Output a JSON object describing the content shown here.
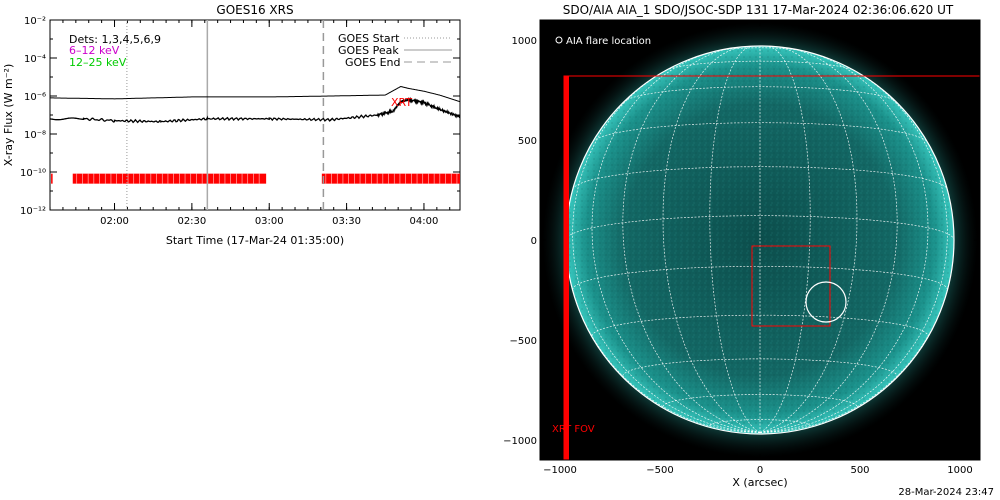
{
  "chart_data": [
    {
      "type": "line",
      "title": "GOES16 XRS",
      "xlabel": "Start Time (17-Mar-24 01:35:00)",
      "ylabel": "X-ray Flux (W m⁻²)",
      "yscale": "log",
      "ylim": [
        1e-12,
        0.01
      ],
      "xlim_hours": [
        1.583,
        4.233
      ],
      "x_ticks": [
        "02:00",
        "02:30",
        "03:00",
        "03:30",
        "04:00"
      ],
      "x_tick_hours": [
        2.0,
        2.5,
        3.0,
        3.5,
        4.0
      ],
      "y_ticks": [
        "10⁻²",
        "10⁻⁴",
        "10⁻⁶",
        "10⁻⁸",
        "10⁻¹⁰",
        "10⁻¹²"
      ],
      "y_tick_exps": [
        -2,
        -4,
        -6,
        -8,
        -10,
        -12
      ],
      "annotations": {
        "dets": "Dets: 1,3,4,5,6,9",
        "band1": "6–12 keV",
        "band2": "12–25 keV",
        "xrt": "XRT"
      },
      "legend": {
        "placement": "top-right",
        "entries": [
          "GOES Start",
          "GOES Peak",
          "GOES End"
        ]
      },
      "markers_hours": {
        "goes_start": 2.08,
        "goes_peak": 2.6,
        "goes_end": 3.35
      },
      "series": [
        {
          "color": "#000000",
          "x": [
            1.583,
            2.0,
            2.5,
            3.0,
            3.4,
            3.75,
            3.85,
            3.9,
            4.0,
            4.1,
            4.233
          ],
          "log10_flux": [
            -6.1,
            -6.15,
            -6.05,
            -6.05,
            -6.0,
            -5.95,
            -5.5,
            -5.6,
            -5.75,
            -5.95,
            -6.3
          ]
        },
        {
          "color": "#000000",
          "x": [
            1.583,
            1.8,
            2.0,
            2.3,
            2.6,
            3.0,
            3.4,
            3.7,
            3.8,
            3.85,
            3.9,
            4.0,
            4.1,
            4.233
          ],
          "log10_flux": [
            -7.25,
            -7.2,
            -7.3,
            -7.35,
            -7.2,
            -7.2,
            -7.25,
            -7.0,
            -6.8,
            -6.3,
            -6.2,
            -6.35,
            -6.7,
            -7.1
          ]
        }
      ],
      "xrt_coverage_hours": [
        [
          1.59,
          1.6
        ],
        [
          1.73,
          2.98
        ],
        [
          3.34,
          4.233
        ]
      ],
      "xrt_coverage_log10_flux": -10.35
    },
    {
      "type": "image",
      "title": "SDO/AIA AIA_1 SDO/JSOC-SDP 131 17-Mar-2024 02:36:06.620 UT",
      "xlabel": "X (arcsec)",
      "x_ticks": [
        "−1000",
        "−500",
        "0",
        "500",
        "1000"
      ],
      "x_tick_values": [
        -1000,
        -500,
        0,
        500,
        1000
      ],
      "y_ticks": [
        "1000",
        "500",
        "0",
        "−500",
        "−1000"
      ],
      "y_tick_values": [
        1000,
        500,
        0,
        -500,
        -1000
      ],
      "xlim": [
        -1100,
        1100
      ],
      "ylim": [
        -1100,
        1100
      ],
      "legend_label": "AIA flare location",
      "fov_label": "XRT FOV",
      "solar_radius_arcsec": 970,
      "xrt_fov_arcsec": {
        "x": [
          -980,
          1100
        ],
        "y": [
          -1100,
          820
        ]
      },
      "xrt_fov_edge_thickness_arcsec": 25,
      "flare_box_arcsec": {
        "x": [
          -40,
          350
        ],
        "y": [
          -430,
          -30
        ]
      },
      "flare_circle_arcsec": {
        "x": 330,
        "y": -310,
        "r": 100
      },
      "colors": {
        "sun": "#1aa7a0",
        "background": "#000000",
        "fov": "#ff0000",
        "grid": "#ffffff"
      }
    }
  ],
  "timestamp": "28-Mar-2024 23:47"
}
